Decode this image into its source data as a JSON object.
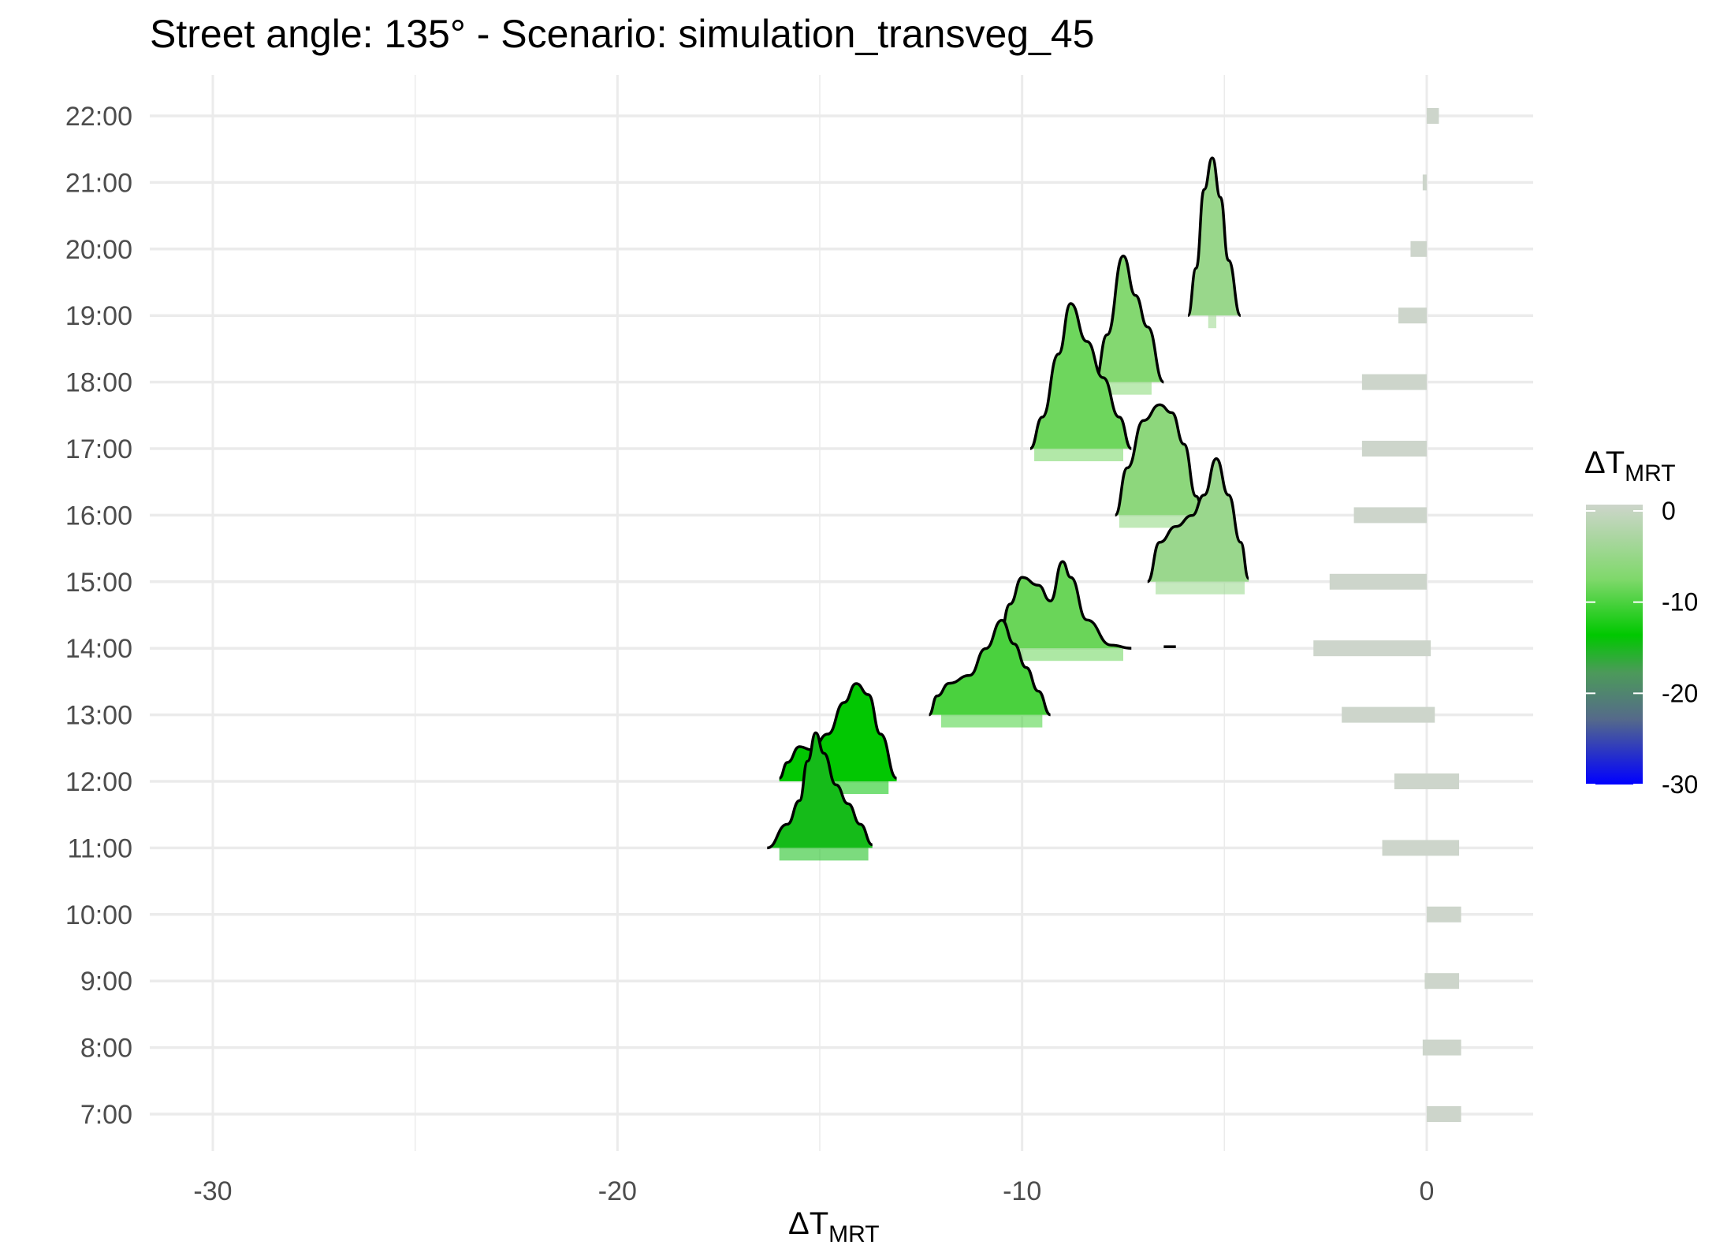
{
  "chart_data": {
    "type": "ridgeline",
    "title": "Street angle: 135° - Scenario: simulation_transveg_45",
    "xlabel": {
      "base": "ΔT",
      "subscript": "MRT"
    },
    "ylabel": "",
    "xlim": [
      -31.5,
      2.5
    ],
    "x_ticks": [
      {
        "value": -30,
        "label": "-30"
      },
      {
        "value": -20,
        "label": "-20"
      },
      {
        "value": -10,
        "label": "-10"
      },
      {
        "value": 0,
        "label": "0"
      }
    ],
    "categories": [
      "7:00",
      "8:00",
      "9:00",
      "10:00",
      "11:00",
      "12:00",
      "13:00",
      "14:00",
      "15:00",
      "16:00",
      "17:00",
      "18:00",
      "19:00",
      "20:00",
      "21:00",
      "22:00"
    ],
    "grid": true,
    "legend": {
      "title": {
        "base": "ΔT",
        "subscript": "MRT"
      },
      "position": "right",
      "range": [
        -30,
        0
      ],
      "ticks": [
        {
          "value": 0,
          "label": "0"
        },
        {
          "value": -10,
          "label": "-10"
        },
        {
          "value": -20,
          "label": "-20"
        },
        {
          "value": -30,
          "label": "-30"
        }
      ],
      "colors": [
        {
          "value": 0,
          "color": "#cdd5cb"
        },
        {
          "value": -8,
          "color": "#7fd86b"
        },
        {
          "value": -14,
          "color": "#00c800"
        },
        {
          "value": -18,
          "color": "#4c9a5a"
        },
        {
          "value": -23,
          "color": "#556a8a"
        },
        {
          "value": -30,
          "color": "#0000ff"
        }
      ]
    },
    "series": [
      {
        "category": "7:00",
        "density": [],
        "rug": [
          0.0,
          0.85
        ]
      },
      {
        "category": "8:00",
        "density": [],
        "rug": [
          -0.1,
          0.85
        ]
      },
      {
        "category": "9:00",
        "density": [],
        "rug": [
          -0.05,
          0.8
        ]
      },
      {
        "category": "10:00",
        "density": [],
        "rug": [
          0.0,
          0.85
        ]
      },
      {
        "category": "11:00",
        "density": [
          [
            -16.3,
            0.0
          ],
          [
            -15.8,
            0.15
          ],
          [
            -15.5,
            0.3
          ],
          [
            -15.3,
            0.55
          ],
          [
            -15.1,
            0.73
          ],
          [
            -14.9,
            0.6
          ],
          [
            -14.6,
            0.4
          ],
          [
            -14.3,
            0.28
          ],
          [
            -14.0,
            0.15
          ],
          [
            -13.7,
            0.02
          ]
        ],
        "rug": [
          -1.1,
          0.8
        ],
        "rug_density": [
          -16.0,
          -13.8
        ]
      },
      {
        "category": "12:00",
        "density": [
          [
            -16.0,
            0.02
          ],
          [
            -15.8,
            0.12
          ],
          [
            -15.5,
            0.22
          ],
          [
            -15.2,
            0.2
          ],
          [
            -14.8,
            0.3
          ],
          [
            -14.4,
            0.5
          ],
          [
            -14.1,
            0.62
          ],
          [
            -13.8,
            0.55
          ],
          [
            -13.5,
            0.3
          ],
          [
            -13.1,
            0.02
          ]
        ],
        "rug": [
          -0.8,
          0.8
        ],
        "rug_density": [
          -15.3,
          -13.3
        ]
      },
      {
        "category": "13:00",
        "density": [
          [
            -12.3,
            0.0
          ],
          [
            -12.1,
            0.12
          ],
          [
            -11.8,
            0.2
          ],
          [
            -11.3,
            0.25
          ],
          [
            -10.9,
            0.42
          ],
          [
            -10.5,
            0.6
          ],
          [
            -10.2,
            0.45
          ],
          [
            -9.9,
            0.3
          ],
          [
            -9.6,
            0.15
          ],
          [
            -9.3,
            0.0
          ]
        ],
        "rug": [
          -2.1,
          0.2
        ],
        "rug_density": [
          -12.0,
          -9.5
        ]
      },
      {
        "category": "14:00",
        "density": [
          [
            -10.6,
            0.0
          ],
          [
            -10.3,
            0.28
          ],
          [
            -10.0,
            0.45
          ],
          [
            -9.6,
            0.4
          ],
          [
            -9.3,
            0.3
          ],
          [
            -9.0,
            0.55
          ],
          [
            -8.8,
            0.45
          ],
          [
            -8.4,
            0.18
          ],
          [
            -7.8,
            0.02
          ],
          [
            -7.3,
            0.0
          ]
        ],
        "rug": [
          -2.8,
          0.1
        ],
        "rug_density": [
          -10.5,
          -7.5
        ],
        "extra_segment": [
          -6.5,
          -6.2
        ]
      },
      {
        "category": "15:00",
        "density": [
          [
            -6.9,
            0.0
          ],
          [
            -6.6,
            0.25
          ],
          [
            -6.2,
            0.35
          ],
          [
            -5.8,
            0.42
          ],
          [
            -5.5,
            0.55
          ],
          [
            -5.2,
            0.78
          ],
          [
            -4.9,
            0.55
          ],
          [
            -4.6,
            0.25
          ],
          [
            -4.4,
            0.02
          ]
        ],
        "rug": [
          -2.4,
          0.0
        ],
        "rug_density": [
          -6.7,
          -4.5
        ]
      },
      {
        "category": "16:00",
        "density": [
          [
            -7.7,
            0.0
          ],
          [
            -7.4,
            0.3
          ],
          [
            -7.0,
            0.6
          ],
          [
            -6.6,
            0.7
          ],
          [
            -6.3,
            0.65
          ],
          [
            -6.0,
            0.45
          ],
          [
            -5.7,
            0.12
          ],
          [
            -5.5,
            0.0
          ]
        ],
        "rug": [
          -1.8,
          0.0
        ],
        "rug_density": [
          -7.6,
          -5.5
        ]
      },
      {
        "category": "17:00",
        "density": [
          [
            -9.8,
            0.0
          ],
          [
            -9.5,
            0.2
          ],
          [
            -9.1,
            0.6
          ],
          [
            -8.8,
            0.92
          ],
          [
            -8.4,
            0.68
          ],
          [
            -8.0,
            0.45
          ],
          [
            -7.6,
            0.2
          ],
          [
            -7.3,
            0.0
          ]
        ],
        "rug": [
          -1.6,
          0.0
        ],
        "rug_density": [
          -9.7,
          -7.5
        ],
        "extra_segment": [
          -6.9,
          -6.5
        ]
      },
      {
        "category": "18:00",
        "density": [
          [
            -8.2,
            0.0
          ],
          [
            -7.9,
            0.3
          ],
          [
            -7.5,
            0.8
          ],
          [
            -7.2,
            0.55
          ],
          [
            -6.9,
            0.35
          ],
          [
            -6.5,
            0.0
          ]
        ],
        "rug": [
          -1.6,
          0.0
        ],
        "rug_density": [
          -8.0,
          -6.8
        ]
      },
      {
        "category": "19:00",
        "density": [
          [
            -5.9,
            0.0
          ],
          [
            -5.7,
            0.3
          ],
          [
            -5.5,
            0.8
          ],
          [
            -5.3,
            1.0
          ],
          [
            -5.1,
            0.75
          ],
          [
            -4.9,
            0.35
          ],
          [
            -4.6,
            0.0
          ]
        ],
        "rug": [
          -0.7,
          0.0
        ],
        "rug_density": [
          -5.4,
          -5.2
        ]
      },
      {
        "category": "20:00",
        "density": [],
        "rug": [
          -0.4,
          0.0
        ]
      },
      {
        "category": "21:00",
        "density": [],
        "rug": [
          -0.1,
          0.0
        ]
      },
      {
        "category": "22:00",
        "density": [],
        "rug": [
          0.0,
          0.3
        ]
      }
    ]
  }
}
